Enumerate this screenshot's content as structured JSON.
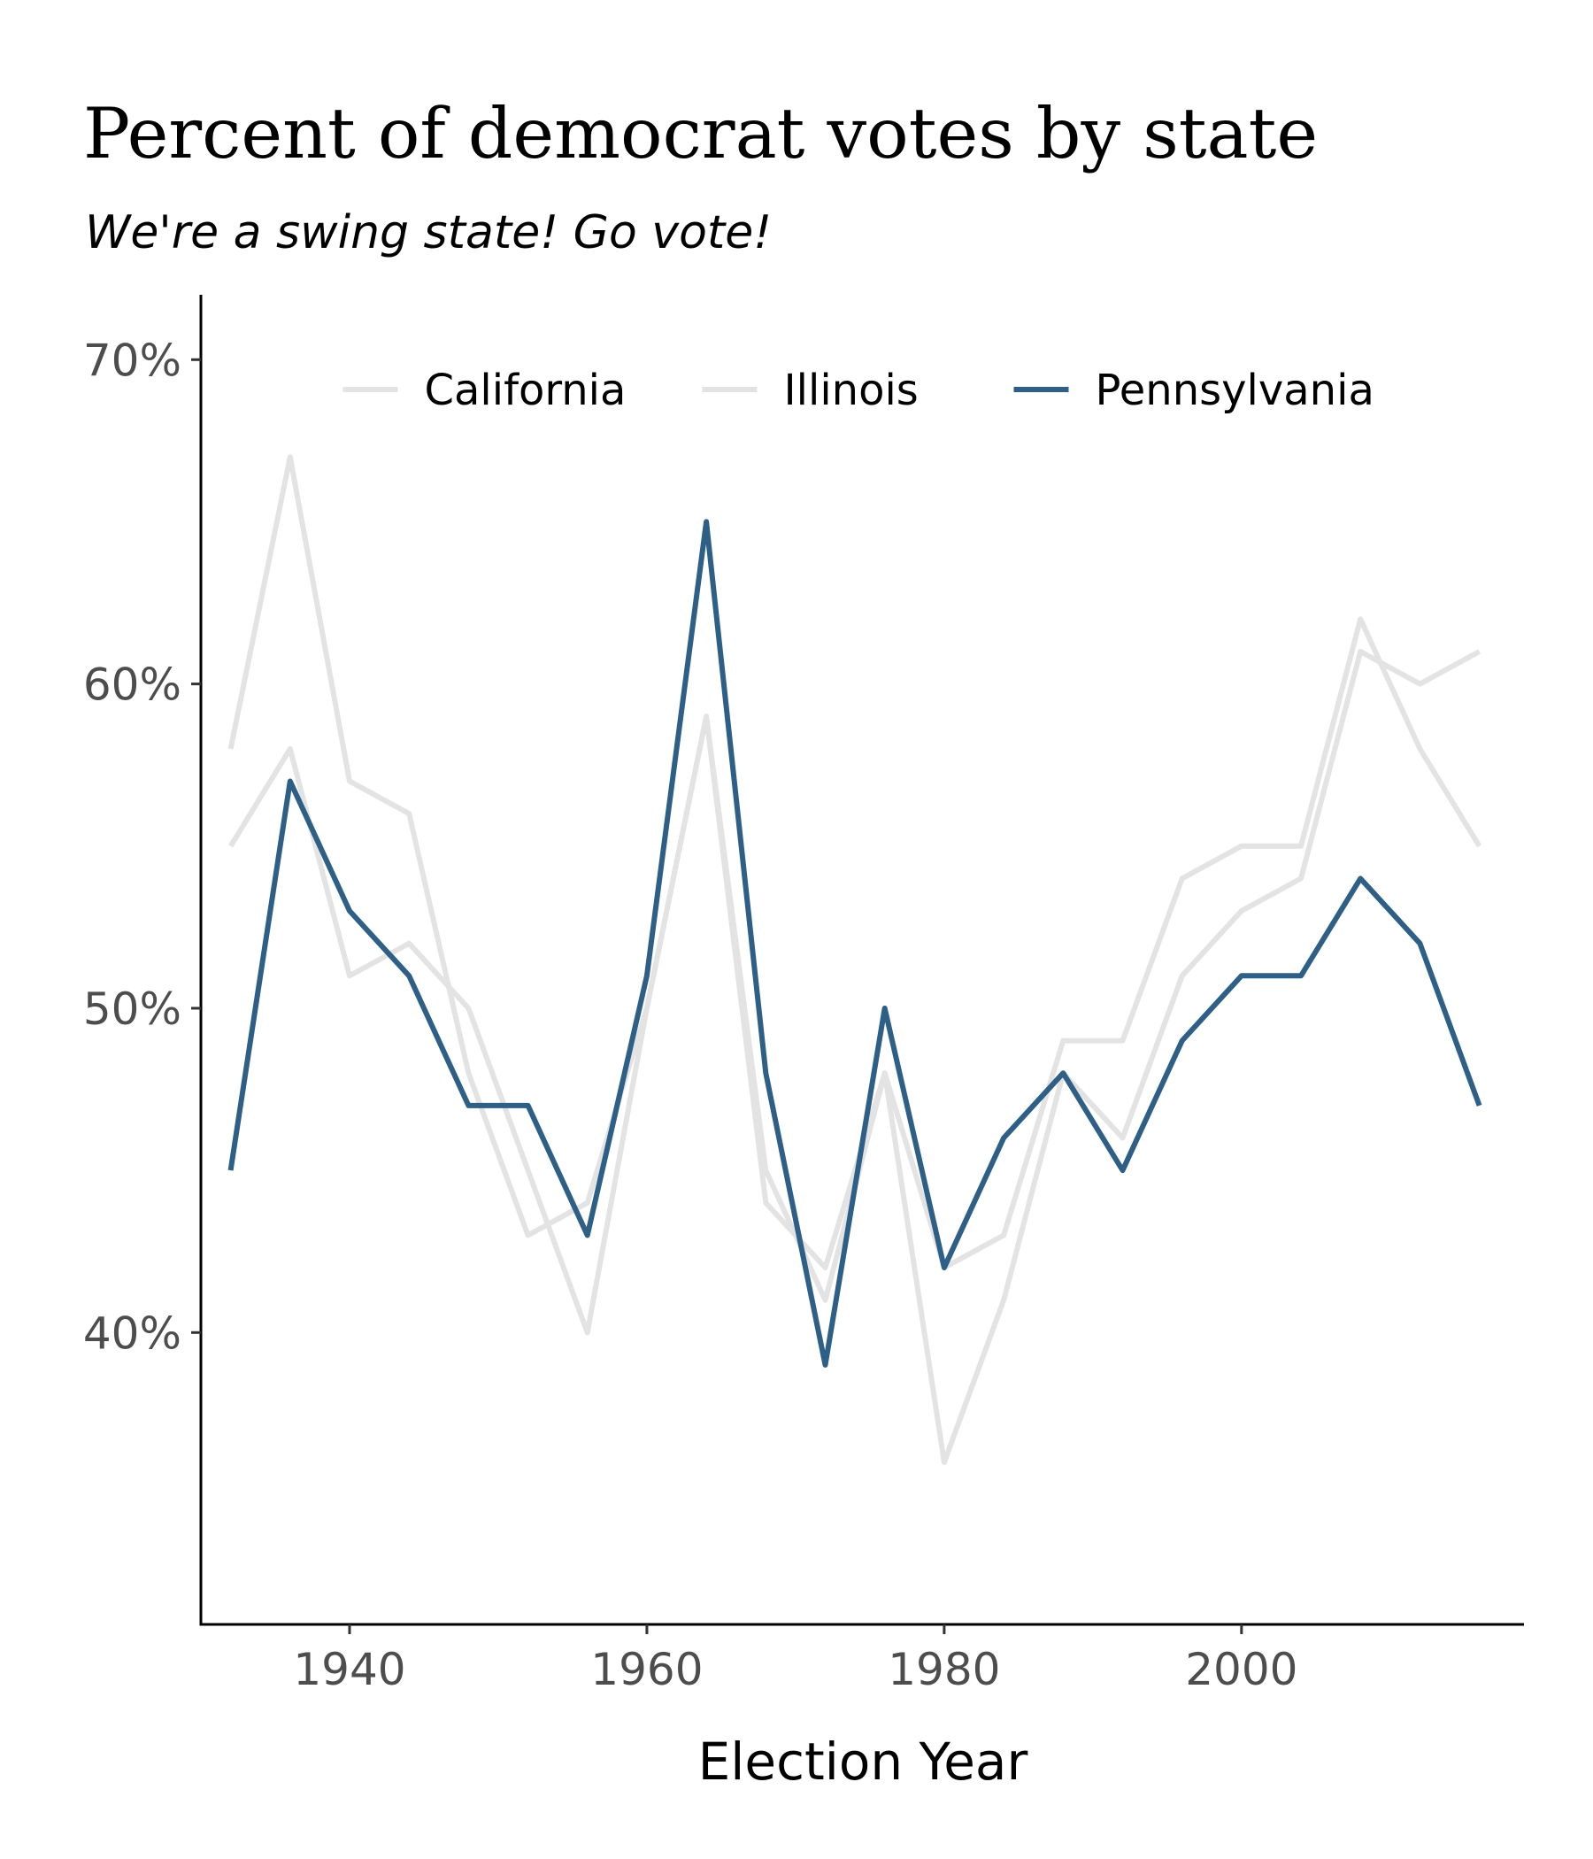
{
  "chart_data": {
    "type": "line",
    "title": "Percent of democrat votes by state",
    "subtitle": "We're a swing state! Go vote!",
    "xlabel": "Election Year",
    "ylabel": "",
    "x": [
      1932,
      1936,
      1940,
      1944,
      1948,
      1952,
      1956,
      1960,
      1964,
      1968,
      1972,
      1976,
      1980,
      1984,
      1988,
      1992,
      1996,
      2000,
      2004,
      2008,
      2012,
      2016
    ],
    "xlim": [
      1930,
      2019
    ],
    "ylim": [
      31,
      72
    ],
    "x_ticks": [
      {
        "value": 1940,
        "label": "1940"
      },
      {
        "value": 1960,
        "label": "1960"
      },
      {
        "value": 1980,
        "label": "1980"
      },
      {
        "value": 2000,
        "label": "2000"
      }
    ],
    "y_ticks": [
      {
        "value": 40,
        "label": "40%"
      },
      {
        "value": 50,
        "label": "50%"
      },
      {
        "value": 60,
        "label": "60%"
      },
      {
        "value": 70,
        "label": "70%"
      }
    ],
    "grid": false,
    "legend_position": "top",
    "series": [
      {
        "name": "California",
        "color": "#e3e3e3",
        "values": [
          58,
          67,
          57,
          56,
          48,
          43,
          44,
          50,
          59,
          45,
          41,
          48,
          36,
          41,
          48,
          46,
          51,
          53,
          54,
          61,
          60,
          61
        ]
      },
      {
        "name": "Illinois",
        "color": "#e3e3e3",
        "values": [
          55,
          58,
          51,
          52,
          50,
          45,
          40,
          50,
          59,
          44,
          42,
          48,
          42,
          43,
          49,
          49,
          54,
          55,
          55,
          62,
          58,
          55
        ]
      },
      {
        "name": "Pennsylvania",
        "color": "#2e5f86",
        "values": [
          45,
          57,
          53,
          51,
          47,
          47,
          43,
          51,
          65,
          48,
          39,
          50,
          42,
          46,
          48,
          45,
          49,
          51,
          51,
          54,
          52,
          47
        ]
      }
    ]
  }
}
